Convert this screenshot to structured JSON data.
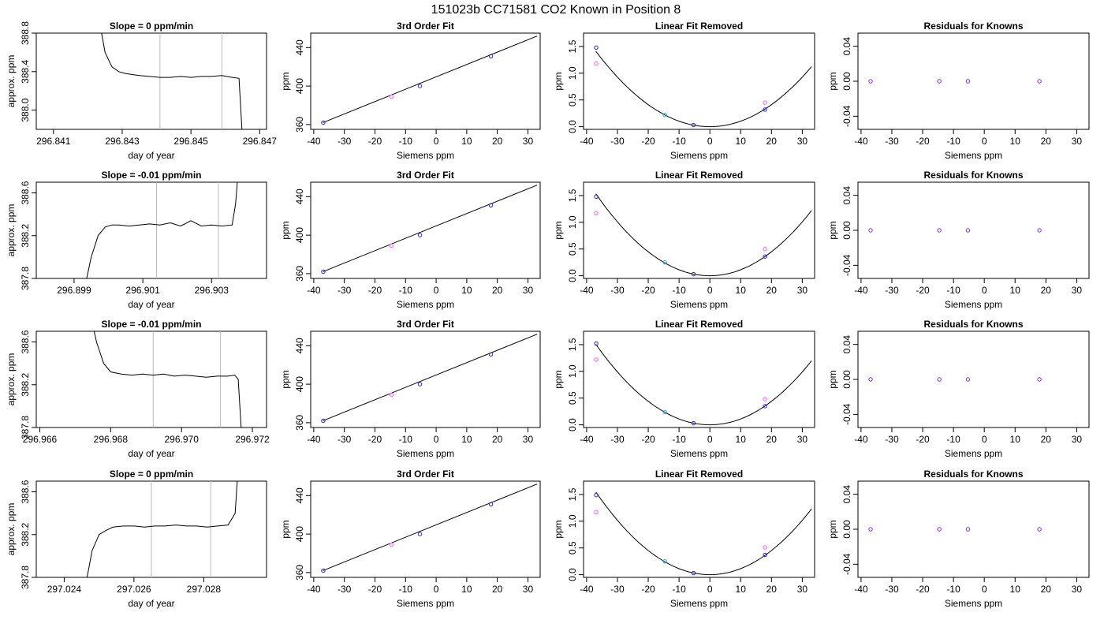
{
  "figure": {
    "title": "151023b     CC71581    CO2 Known in Position  8"
  },
  "chart_data": [
    {
      "type": "line",
      "row": 1,
      "col": 1,
      "title": "Slope =  0  ppm/min",
      "xlabel": "day of year",
      "ylabel": "approx. ppm",
      "xlim": [
        296.8405,
        296.8472
      ],
      "ylim": [
        387.8,
        388.8
      ],
      "xticks": [
        "296.841",
        "296.843",
        "296.845",
        "296.847"
      ],
      "yticks": [
        "388.0",
        "388.4",
        "388.8"
      ],
      "vlines": [
        296.8441,
        296.8459
      ],
      "series": [
        {
          "x": [
            296.8423,
            296.8425,
            296.8427,
            296.8429,
            296.8431,
            296.8433,
            296.8435,
            296.8438,
            296.8441,
            296.8444,
            296.8447,
            296.845,
            296.8453,
            296.8456,
            296.8459,
            296.8462,
            296.8464,
            296.8465
          ],
          "y": [
            389.0,
            388.6,
            388.45,
            388.4,
            388.38,
            388.37,
            388.36,
            388.35,
            388.34,
            388.34,
            388.35,
            388.34,
            388.35,
            388.35,
            388.36,
            388.34,
            388.33,
            387.7
          ]
        }
      ]
    },
    {
      "type": "scatter",
      "row": 1,
      "col": 2,
      "title": "3rd Order Fit",
      "xlabel": "Siemens ppm",
      "ylabel": "ppm",
      "xlim": [
        -41,
        34
      ],
      "ylim": [
        355,
        455
      ],
      "xticks": [
        "-40",
        "-30",
        "-20",
        "-10",
        "0",
        "10",
        "20",
        "30"
      ],
      "yticks": [
        "360",
        "400",
        "440"
      ],
      "fit_line": {
        "x": [
          -37,
          33
        ],
        "y": [
          362,
          452
        ]
      },
      "points": [
        {
          "x": -36.9,
          "y": 362,
          "color": "#2222ff"
        },
        {
          "x": -14.6,
          "y": 389,
          "color": "#ff55ff"
        },
        {
          "x": -5.3,
          "y": 400,
          "color": "#2222ff"
        },
        {
          "x": 17.9,
          "y": 431,
          "color": "#2222ff"
        }
      ]
    },
    {
      "type": "scatter",
      "row": 1,
      "col": 3,
      "title": "Linear Fit Removed",
      "xlabel": "Siemens ppm",
      "ylabel": "ppm",
      "xlim": [
        -41,
        34
      ],
      "ylim": [
        -0.05,
        1.75
      ],
      "xticks": [
        "-40",
        "-30",
        "-20",
        "-10",
        "0",
        "10",
        "20",
        "30"
      ],
      "yticks": [
        "0.0",
        "0.5",
        "1.0",
        "1.5"
      ],
      "curve_coef": 0.00103,
      "points": [
        {
          "x": -36.9,
          "y": 1.48,
          "color": "#2222ff"
        },
        {
          "x": -36.9,
          "y": 1.18,
          "color": "#ff55ff"
        },
        {
          "x": -14.6,
          "y": 0.22,
          "color": "#22aaff"
        },
        {
          "x": -5.3,
          "y": 0.03,
          "color": "#2222ff"
        },
        {
          "x": 17.9,
          "y": 0.32,
          "color": "#2222ff"
        },
        {
          "x": 17.9,
          "y": 0.45,
          "color": "#ff55ff"
        }
      ]
    },
    {
      "type": "scatter",
      "row": 1,
      "col": 4,
      "title": "Residuals for Knowns",
      "xlabel": "Siemens ppm",
      "ylabel": "ppm",
      "xlim": [
        -41,
        34
      ],
      "ylim": [
        -0.055,
        0.055
      ],
      "xticks": [
        "-40",
        "-30",
        "-20",
        "-10",
        "0",
        "10",
        "20",
        "30"
      ],
      "yticks": [
        "-0.04",
        "0.00",
        "0.04"
      ],
      "points": [
        {
          "x": -36.9,
          "y": 0,
          "color": "#8822ff"
        },
        {
          "x": -14.6,
          "y": 0,
          "color": "#8822ff"
        },
        {
          "x": -5.3,
          "y": 0,
          "color": "#8822ff"
        },
        {
          "x": 17.9,
          "y": 0,
          "color": "#8822ff"
        }
      ]
    },
    {
      "type": "line",
      "row": 2,
      "col": 1,
      "title": "Slope =  -0.01  ppm/min",
      "xlabel": "day of year",
      "ylabel": "approx. ppm",
      "xlim": [
        296.8979,
        296.9046
      ],
      "ylim": [
        387.8,
        388.7
      ],
      "xticks": [
        "296.899",
        "296.901",
        "296.903"
      ],
      "yticks": [
        "387.8",
        "388.2",
        "388.6"
      ],
      "vlines": [
        296.9014,
        296.9032
      ],
      "series": [
        {
          "x": [
            296.8993,
            296.8995,
            296.8997,
            296.8999,
            296.9001,
            296.9003,
            296.9006,
            296.9009,
            296.9012,
            296.9015,
            296.9018,
            296.9021,
            296.9024,
            296.9027,
            296.903,
            296.9033,
            296.9036,
            296.9037,
            296.9038
          ],
          "y": [
            387.7,
            388.0,
            388.2,
            388.28,
            388.3,
            388.3,
            388.29,
            388.3,
            388.31,
            388.3,
            388.32,
            388.29,
            388.34,
            388.29,
            388.3,
            388.29,
            388.3,
            388.5,
            388.9
          ]
        }
      ]
    },
    {
      "type": "scatter",
      "row": 2,
      "col": 2,
      "title": "3rd Order Fit",
      "xlabel": "Siemens ppm",
      "ylabel": "ppm",
      "xlim": [
        -41,
        34
      ],
      "ylim": [
        355,
        455
      ],
      "xticks": [
        "-40",
        "-30",
        "-20",
        "-10",
        "0",
        "10",
        "20",
        "30"
      ],
      "yticks": [
        "360",
        "400",
        "440"
      ],
      "fit_line": {
        "x": [
          -37,
          33
        ],
        "y": [
          362,
          452
        ]
      },
      "points": [
        {
          "x": -36.9,
          "y": 362,
          "color": "#2222ff"
        },
        {
          "x": -14.6,
          "y": 389,
          "color": "#ff55ff"
        },
        {
          "x": -5.3,
          "y": 400,
          "color": "#2222ff"
        },
        {
          "x": 17.9,
          "y": 431,
          "color": "#2222ff"
        }
      ]
    },
    {
      "type": "scatter",
      "row": 2,
      "col": 3,
      "title": "Linear Fit Removed",
      "xlabel": "Siemens ppm",
      "ylabel": "ppm",
      "xlim": [
        -41,
        34
      ],
      "ylim": [
        -0.05,
        1.75
      ],
      "xticks": [
        "-40",
        "-30",
        "-20",
        "-10",
        "0",
        "10",
        "20",
        "30"
      ],
      "yticks": [
        "0.0",
        "0.5",
        "1.0",
        "1.5"
      ],
      "curve_coef": 0.00112,
      "points": [
        {
          "x": -36.9,
          "y": 1.48,
          "color": "#2222ff"
        },
        {
          "x": -36.9,
          "y": 1.17,
          "color": "#ff55ff"
        },
        {
          "x": -14.6,
          "y": 0.25,
          "color": "#22aaff"
        },
        {
          "x": -5.3,
          "y": 0.03,
          "color": "#2222ff"
        },
        {
          "x": 17.9,
          "y": 0.36,
          "color": "#2222ff"
        },
        {
          "x": 17.9,
          "y": 0.5,
          "color": "#ff55ff"
        }
      ]
    },
    {
      "type": "scatter",
      "row": 2,
      "col": 4,
      "title": "Residuals for Knowns",
      "xlabel": "Siemens ppm",
      "ylabel": "ppm",
      "xlim": [
        -41,
        34
      ],
      "ylim": [
        -0.055,
        0.055
      ],
      "xticks": [
        "-40",
        "-30",
        "-20",
        "-10",
        "0",
        "10",
        "20",
        "30"
      ],
      "yticks": [
        "-0.04",
        "0.00",
        "0.04"
      ],
      "points": [
        {
          "x": -36.9,
          "y": 0,
          "color": "#8822ff"
        },
        {
          "x": -14.6,
          "y": 0,
          "color": "#8822ff"
        },
        {
          "x": -5.3,
          "y": 0,
          "color": "#8822ff"
        },
        {
          "x": 17.9,
          "y": 0,
          "color": "#8822ff"
        }
      ]
    },
    {
      "type": "line",
      "row": 3,
      "col": 1,
      "title": "Slope =  -0.01  ppm/min",
      "xlabel": "day of year",
      "ylabel": "approx. ppm",
      "xlim": [
        296.9659,
        296.9724
      ],
      "ylim": [
        387.8,
        388.7
      ],
      "xticks": [
        "296.966",
        "296.968",
        "296.970",
        "296.972"
      ],
      "yticks": [
        "387.8",
        "388.2",
        "388.6"
      ],
      "vlines": [
        296.9692,
        296.9711
      ],
      "series": [
        {
          "x": [
            296.9674,
            296.9676,
            296.9678,
            296.968,
            296.9683,
            296.9686,
            296.9689,
            296.9692,
            296.9695,
            296.9698,
            296.9701,
            296.9704,
            296.9707,
            296.971,
            296.9713,
            296.9715,
            296.9716,
            296.9717
          ],
          "y": [
            388.9,
            388.6,
            388.4,
            388.32,
            388.3,
            388.29,
            388.3,
            388.29,
            388.3,
            388.28,
            388.29,
            388.28,
            388.27,
            388.28,
            388.28,
            388.29,
            388.25,
            387.7
          ]
        }
      ]
    },
    {
      "type": "scatter",
      "row": 3,
      "col": 2,
      "title": "3rd Order Fit",
      "xlabel": "Siemens ppm",
      "ylabel": "ppm",
      "xlim": [
        -41,
        34
      ],
      "ylim": [
        355,
        455
      ],
      "xticks": [
        "-40",
        "-30",
        "-20",
        "-10",
        "0",
        "10",
        "20",
        "30"
      ],
      "yticks": [
        "360",
        "400",
        "440"
      ],
      "fit_line": {
        "x": [
          -37,
          33
        ],
        "y": [
          362,
          452
        ]
      },
      "points": [
        {
          "x": -36.9,
          "y": 362,
          "color": "#2222ff"
        },
        {
          "x": -14.6,
          "y": 389,
          "color": "#ff55ff"
        },
        {
          "x": -5.3,
          "y": 400,
          "color": "#2222ff"
        },
        {
          "x": 17.9,
          "y": 431,
          "color": "#2222ff"
        }
      ]
    },
    {
      "type": "scatter",
      "row": 3,
      "col": 3,
      "title": "Linear Fit Removed",
      "xlabel": "Siemens ppm",
      "ylabel": "ppm",
      "xlim": [
        -41,
        34
      ],
      "ylim": [
        -0.05,
        1.75
      ],
      "xticks": [
        "-40",
        "-30",
        "-20",
        "-10",
        "0",
        "10",
        "20",
        "30"
      ],
      "yticks": [
        "0.0",
        "0.5",
        "1.0",
        "1.5"
      ],
      "curve_coef": 0.0011,
      "points": [
        {
          "x": -36.9,
          "y": 1.52,
          "color": "#2222ff"
        },
        {
          "x": -36.9,
          "y": 1.22,
          "color": "#ff55ff"
        },
        {
          "x": -14.6,
          "y": 0.24,
          "color": "#22aaff"
        },
        {
          "x": -5.3,
          "y": 0.03,
          "color": "#2222ff"
        },
        {
          "x": 17.9,
          "y": 0.35,
          "color": "#2222ff"
        },
        {
          "x": 17.9,
          "y": 0.48,
          "color": "#ff55ff"
        }
      ]
    },
    {
      "type": "scatter",
      "row": 3,
      "col": 4,
      "title": "Residuals for Knowns",
      "xlabel": "Siemens ppm",
      "ylabel": "ppm",
      "xlim": [
        -41,
        34
      ],
      "ylim": [
        -0.055,
        0.055
      ],
      "xticks": [
        "-40",
        "-30",
        "-20",
        "-10",
        "0",
        "10",
        "20",
        "30"
      ],
      "yticks": [
        "-0.04",
        "0.00",
        "0.04"
      ],
      "points": [
        {
          "x": -36.9,
          "y": 0,
          "color": "#8822ff"
        },
        {
          "x": -14.6,
          "y": 0,
          "color": "#8822ff"
        },
        {
          "x": -5.3,
          "y": 0,
          "color": "#8822ff"
        },
        {
          "x": 17.9,
          "y": 0,
          "color": "#8822ff"
        }
      ]
    },
    {
      "type": "line",
      "row": 4,
      "col": 1,
      "title": "Slope =  0  ppm/min",
      "xlabel": "day of year",
      "ylabel": "approx. ppm",
      "xlim": [
        297.0232,
        297.0298
      ],
      "ylim": [
        387.8,
        388.7
      ],
      "xticks": [
        "297.024",
        "297.026",
        "297.028"
      ],
      "yticks": [
        "387.8",
        "388.2",
        "388.6"
      ],
      "vlines": [
        297.0265,
        297.0282
      ],
      "series": [
        {
          "x": [
            297.0246,
            297.0248,
            297.025,
            297.0252,
            297.0254,
            297.0257,
            297.026,
            297.0263,
            297.0266,
            297.0269,
            297.0272,
            297.0275,
            297.0278,
            297.0281,
            297.0284,
            297.0287,
            297.0289,
            297.029
          ],
          "y": [
            387.7,
            388.05,
            388.2,
            388.24,
            388.27,
            388.28,
            388.28,
            388.27,
            388.28,
            388.28,
            388.29,
            388.28,
            388.28,
            388.27,
            388.28,
            388.29,
            388.4,
            388.9
          ]
        }
      ]
    },
    {
      "type": "scatter",
      "row": 4,
      "col": 2,
      "title": "3rd Order Fit",
      "xlabel": "Siemens ppm",
      "ylabel": "ppm",
      "xlim": [
        -41,
        34
      ],
      "ylim": [
        355,
        455
      ],
      "xticks": [
        "-40",
        "-30",
        "-20",
        "-10",
        "0",
        "10",
        "20",
        "30"
      ],
      "yticks": [
        "360",
        "400",
        "440"
      ],
      "fit_line": {
        "x": [
          -37,
          33
        ],
        "y": [
          362,
          452
        ]
      },
      "points": [
        {
          "x": -36.9,
          "y": 362,
          "color": "#2222ff"
        },
        {
          "x": -14.6,
          "y": 389,
          "color": "#ff55ff"
        },
        {
          "x": -5.3,
          "y": 400,
          "color": "#2222ff"
        },
        {
          "x": 17.9,
          "y": 431,
          "color": "#2222ff"
        }
      ]
    },
    {
      "type": "scatter",
      "row": 4,
      "col": 3,
      "title": "Linear Fit Removed",
      "xlabel": "Siemens ppm",
      "ylabel": "ppm",
      "xlim": [
        -41,
        34
      ],
      "ylim": [
        -0.05,
        1.75
      ],
      "xticks": [
        "-40",
        "-30",
        "-20",
        "-10",
        "0",
        "10",
        "20",
        "30"
      ],
      "yticks": [
        "0.0",
        "0.5",
        "1.0",
        "1.5"
      ],
      "curve_coef": 0.00113,
      "points": [
        {
          "x": -36.9,
          "y": 1.49,
          "color": "#2222ff"
        },
        {
          "x": -36.9,
          "y": 1.17,
          "color": "#ff55ff"
        },
        {
          "x": -14.6,
          "y": 0.25,
          "color": "#22aaff"
        },
        {
          "x": -5.3,
          "y": 0.03,
          "color": "#2222ff"
        },
        {
          "x": 17.9,
          "y": 0.37,
          "color": "#2222ff"
        },
        {
          "x": 17.9,
          "y": 0.51,
          "color": "#ff55ff"
        }
      ]
    },
    {
      "type": "scatter",
      "row": 4,
      "col": 4,
      "title": "Residuals for Knowns",
      "xlabel": "Siemens ppm",
      "ylabel": "ppm",
      "xlim": [
        -41,
        34
      ],
      "ylim": [
        -0.055,
        0.055
      ],
      "xticks": [
        "-40",
        "-30",
        "-20",
        "-10",
        "0",
        "10",
        "20",
        "30"
      ],
      "yticks": [
        "-0.04",
        "0.00",
        "0.04"
      ],
      "points": [
        {
          "x": -36.9,
          "y": 0,
          "color": "#8822ff"
        },
        {
          "x": -14.6,
          "y": 0,
          "color": "#8822ff"
        },
        {
          "x": -5.3,
          "y": 0,
          "color": "#8822ff"
        },
        {
          "x": 17.9,
          "y": 0,
          "color": "#8822ff"
        }
      ]
    }
  ]
}
